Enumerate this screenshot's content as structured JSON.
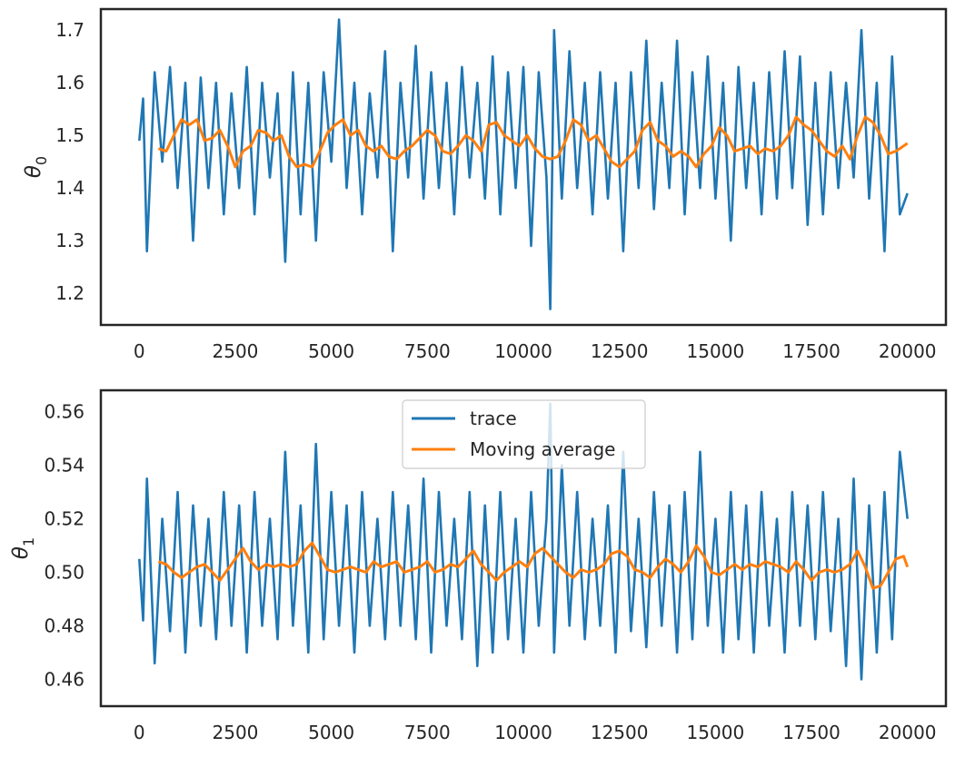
{
  "chart_data": [
    {
      "type": "line",
      "title": "",
      "xlabel": "",
      "ylabel": "θ",
      "ylabel_subscript": "0",
      "xlim": [
        -1000,
        21000
      ],
      "ylim": [
        1.14,
        1.74
      ],
      "xticks": [
        0,
        2500,
        5000,
        7500,
        10000,
        12500,
        15000,
        17500,
        20000
      ],
      "xtick_labels": [
        "0",
        "2500",
        "5000",
        "7500",
        "10000",
        "12500",
        "15000",
        "17500",
        "20000"
      ],
      "yticks": [
        1.2,
        1.3,
        1.4,
        1.5,
        1.6,
        1.7
      ],
      "ytick_labels": [
        "1.2",
        "1.3",
        "1.4",
        "1.5",
        "1.6",
        "1.7"
      ],
      "grid": false,
      "legend": "none",
      "series": [
        {
          "name": "trace",
          "color": "#1f77b4",
          "x": [
            0,
            100,
            200,
            400,
            600,
            800,
            1000,
            1200,
            1400,
            1600,
            1800,
            2000,
            2200,
            2400,
            2600,
            2800,
            3000,
            3200,
            3400,
            3600,
            3800,
            4000,
            4200,
            4400,
            4600,
            4800,
            5000,
            5200,
            5400,
            5600,
            5800,
            6000,
            6200,
            6400,
            6600,
            6800,
            7000,
            7200,
            7400,
            7600,
            7800,
            8000,
            8200,
            8400,
            8600,
            8800,
            9000,
            9200,
            9400,
            9600,
            9800,
            10000,
            10200,
            10400,
            10600,
            10700,
            10800,
            11000,
            11200,
            11400,
            11600,
            11800,
            12000,
            12200,
            12400,
            12600,
            12800,
            13000,
            13200,
            13400,
            13600,
            13800,
            14000,
            14200,
            14400,
            14600,
            14800,
            15000,
            15200,
            15400,
            15600,
            15800,
            16000,
            16200,
            16400,
            16600,
            16800,
            17000,
            17200,
            17400,
            17600,
            17800,
            18000,
            18200,
            18400,
            18600,
            18800,
            19000,
            19200,
            19400,
            19600,
            19800,
            20000
          ],
          "y": [
            1.49,
            1.57,
            1.28,
            1.62,
            1.45,
            1.63,
            1.4,
            1.6,
            1.3,
            1.61,
            1.4,
            1.6,
            1.35,
            1.58,
            1.4,
            1.63,
            1.35,
            1.6,
            1.42,
            1.58,
            1.26,
            1.62,
            1.35,
            1.6,
            1.3,
            1.62,
            1.45,
            1.72,
            1.4,
            1.6,
            1.35,
            1.58,
            1.42,
            1.66,
            1.28,
            1.6,
            1.42,
            1.67,
            1.38,
            1.62,
            1.4,
            1.6,
            1.35,
            1.63,
            1.42,
            1.6,
            1.38,
            1.65,
            1.35,
            1.62,
            1.4,
            1.63,
            1.29,
            1.62,
            1.42,
            1.17,
            1.7,
            1.38,
            1.66,
            1.4,
            1.6,
            1.35,
            1.62,
            1.38,
            1.6,
            1.28,
            1.62,
            1.4,
            1.68,
            1.36,
            1.6,
            1.4,
            1.68,
            1.35,
            1.62,
            1.4,
            1.65,
            1.38,
            1.6,
            1.3,
            1.63,
            1.4,
            1.6,
            1.35,
            1.62,
            1.38,
            1.66,
            1.4,
            1.65,
            1.33,
            1.6,
            1.35,
            1.62,
            1.4,
            1.6,
            1.42,
            1.7,
            1.38,
            1.6,
            1.28,
            1.65,
            1.35,
            1.39
          ]
        },
        {
          "name": "Moving average",
          "color": "#ff7f0e",
          "x": [
            500,
            700,
            900,
            1100,
            1300,
            1500,
            1700,
            1900,
            2100,
            2300,
            2500,
            2700,
            2900,
            3100,
            3300,
            3500,
            3700,
            3900,
            4100,
            4300,
            4500,
            4700,
            4900,
            5100,
            5300,
            5500,
            5700,
            5900,
            6100,
            6300,
            6500,
            6700,
            6900,
            7100,
            7300,
            7500,
            7700,
            7900,
            8100,
            8300,
            8500,
            8700,
            8900,
            9100,
            9300,
            9500,
            9700,
            9900,
            10100,
            10300,
            10500,
            10700,
            10900,
            11100,
            11300,
            11500,
            11700,
            11900,
            12100,
            12300,
            12500,
            12700,
            12900,
            13100,
            13300,
            13500,
            13700,
            13900,
            14100,
            14300,
            14500,
            14700,
            14900,
            15100,
            15300,
            15500,
            15700,
            15900,
            16100,
            16300,
            16500,
            16700,
            16900,
            17100,
            17300,
            17500,
            17700,
            17900,
            18100,
            18300,
            18500,
            18700,
            18900,
            19100,
            19300,
            19500,
            19700,
            19900,
            20000
          ],
          "y": [
            1.475,
            1.47,
            1.5,
            1.53,
            1.52,
            1.53,
            1.49,
            1.495,
            1.51,
            1.48,
            1.44,
            1.47,
            1.48,
            1.51,
            1.505,
            1.49,
            1.5,
            1.46,
            1.44,
            1.445,
            1.44,
            1.47,
            1.505,
            1.52,
            1.53,
            1.5,
            1.51,
            1.48,
            1.47,
            1.48,
            1.46,
            1.455,
            1.47,
            1.48,
            1.495,
            1.51,
            1.5,
            1.47,
            1.465,
            1.48,
            1.5,
            1.49,
            1.47,
            1.52,
            1.525,
            1.5,
            1.49,
            1.48,
            1.5,
            1.475,
            1.46,
            1.455,
            1.46,
            1.49,
            1.53,
            1.52,
            1.49,
            1.5,
            1.475,
            1.45,
            1.44,
            1.455,
            1.47,
            1.51,
            1.525,
            1.49,
            1.48,
            1.46,
            1.47,
            1.46,
            1.44,
            1.465,
            1.48,
            1.515,
            1.5,
            1.47,
            1.475,
            1.48,
            1.465,
            1.475,
            1.47,
            1.48,
            1.5,
            1.535,
            1.52,
            1.51,
            1.49,
            1.47,
            1.46,
            1.48,
            1.455,
            1.5,
            1.535,
            1.525,
            1.5,
            1.465,
            1.47,
            1.48,
            1.485
          ]
        }
      ]
    },
    {
      "type": "line",
      "title": "",
      "xlabel": "",
      "ylabel": "θ",
      "ylabel_subscript": "1",
      "xlim": [
        -1000,
        21000
      ],
      "ylim": [
        0.45,
        0.568
      ],
      "xticks": [
        0,
        2500,
        5000,
        7500,
        10000,
        12500,
        15000,
        17500,
        20000
      ],
      "xtick_labels": [
        "0",
        "2500",
        "5000",
        "7500",
        "10000",
        "12500",
        "15000",
        "17500",
        "20000"
      ],
      "yticks": [
        0.46,
        0.48,
        0.5,
        0.52,
        0.54,
        0.56
      ],
      "ytick_labels": [
        "0.46",
        "0.48",
        "0.50",
        "0.52",
        "0.54",
        "0.56"
      ],
      "grid": false,
      "legend": "upper-center",
      "legend_entries": [
        "trace",
        "Moving average"
      ],
      "series": [
        {
          "name": "trace",
          "color": "#1f77b4",
          "x": [
            0,
            100,
            200,
            400,
            600,
            800,
            1000,
            1200,
            1400,
            1600,
            1800,
            2000,
            2200,
            2400,
            2600,
            2800,
            3000,
            3200,
            3400,
            3600,
            3800,
            4000,
            4200,
            4400,
            4600,
            4800,
            5000,
            5200,
            5400,
            5600,
            5800,
            6000,
            6200,
            6400,
            6600,
            6800,
            7000,
            7200,
            7400,
            7600,
            7800,
            8000,
            8200,
            8400,
            8600,
            8800,
            9000,
            9200,
            9400,
            9600,
            9800,
            10000,
            10200,
            10400,
            10600,
            10700,
            10800,
            11000,
            11200,
            11400,
            11600,
            11800,
            12000,
            12200,
            12400,
            12600,
            12800,
            13000,
            13200,
            13400,
            13600,
            13800,
            14000,
            14200,
            14400,
            14600,
            14800,
            15000,
            15200,
            15400,
            15600,
            15800,
            16000,
            16200,
            16400,
            16600,
            16800,
            17000,
            17200,
            17400,
            17600,
            17800,
            18000,
            18200,
            18400,
            18600,
            18800,
            19000,
            19200,
            19400,
            19600,
            19800,
            20000
          ],
          "y": [
            0.505,
            0.482,
            0.535,
            0.466,
            0.52,
            0.478,
            0.53,
            0.47,
            0.525,
            0.48,
            0.52,
            0.475,
            0.53,
            0.48,
            0.525,
            0.47,
            0.53,
            0.48,
            0.52,
            0.475,
            0.545,
            0.48,
            0.525,
            0.47,
            0.548,
            0.475,
            0.53,
            0.48,
            0.525,
            0.47,
            0.53,
            0.48,
            0.52,
            0.475,
            0.53,
            0.48,
            0.525,
            0.475,
            0.535,
            0.47,
            0.53,
            0.48,
            0.52,
            0.475,
            0.53,
            0.465,
            0.525,
            0.47,
            0.53,
            0.475,
            0.52,
            0.47,
            0.53,
            0.48,
            0.52,
            0.563,
            0.47,
            0.54,
            0.48,
            0.53,
            0.475,
            0.52,
            0.48,
            0.525,
            0.47,
            0.545,
            0.478,
            0.52,
            0.472,
            0.53,
            0.48,
            0.525,
            0.47,
            0.53,
            0.475,
            0.545,
            0.48,
            0.52,
            0.47,
            0.53,
            0.475,
            0.525,
            0.47,
            0.53,
            0.48,
            0.52,
            0.47,
            0.53,
            0.48,
            0.525,
            0.475,
            0.53,
            0.478,
            0.52,
            0.465,
            0.535,
            0.46,
            0.525,
            0.47,
            0.53,
            0.475,
            0.545,
            0.52
          ]
        },
        {
          "name": "Moving average",
          "color": "#ff7f0e",
          "x": [
            500,
            700,
            900,
            1100,
            1300,
            1500,
            1700,
            1900,
            2100,
            2300,
            2500,
            2700,
            2900,
            3100,
            3300,
            3500,
            3700,
            3900,
            4100,
            4300,
            4500,
            4700,
            4900,
            5100,
            5300,
            5500,
            5700,
            5900,
            6100,
            6300,
            6500,
            6700,
            6900,
            7100,
            7300,
            7500,
            7700,
            7900,
            8100,
            8300,
            8500,
            8700,
            8900,
            9100,
            9300,
            9500,
            9700,
            9900,
            10100,
            10300,
            10500,
            10700,
            10900,
            11100,
            11300,
            11500,
            11700,
            11900,
            12100,
            12300,
            12500,
            12700,
            12900,
            13100,
            13300,
            13500,
            13700,
            13900,
            14100,
            14300,
            14500,
            14700,
            14900,
            15100,
            15300,
            15500,
            15700,
            15900,
            16100,
            16300,
            16500,
            16700,
            16900,
            17100,
            17300,
            17500,
            17700,
            17900,
            18100,
            18300,
            18500,
            18700,
            18900,
            19100,
            19300,
            19500,
            19700,
            19900,
            20000
          ],
          "y": [
            0.504,
            0.503,
            0.5,
            0.498,
            0.5,
            0.502,
            0.503,
            0.5,
            0.497,
            0.501,
            0.505,
            0.509,
            0.504,
            0.501,
            0.503,
            0.502,
            0.503,
            0.502,
            0.503,
            0.508,
            0.511,
            0.506,
            0.501,
            0.5,
            0.501,
            0.502,
            0.501,
            0.5,
            0.504,
            0.502,
            0.503,
            0.504,
            0.5,
            0.501,
            0.502,
            0.504,
            0.5,
            0.501,
            0.503,
            0.502,
            0.505,
            0.508,
            0.503,
            0.5,
            0.497,
            0.5,
            0.502,
            0.504,
            0.502,
            0.507,
            0.509,
            0.506,
            0.503,
            0.5,
            0.498,
            0.501,
            0.5,
            0.501,
            0.503,
            0.507,
            0.508,
            0.506,
            0.501,
            0.5,
            0.498,
            0.502,
            0.505,
            0.503,
            0.5,
            0.504,
            0.51,
            0.506,
            0.5,
            0.499,
            0.501,
            0.503,
            0.501,
            0.503,
            0.502,
            0.504,
            0.503,
            0.502,
            0.5,
            0.504,
            0.501,
            0.497,
            0.5,
            0.501,
            0.5,
            0.501,
            0.503,
            0.508,
            0.502,
            0.494,
            0.495,
            0.5,
            0.505,
            0.506,
            0.502
          ]
        }
      ]
    }
  ]
}
